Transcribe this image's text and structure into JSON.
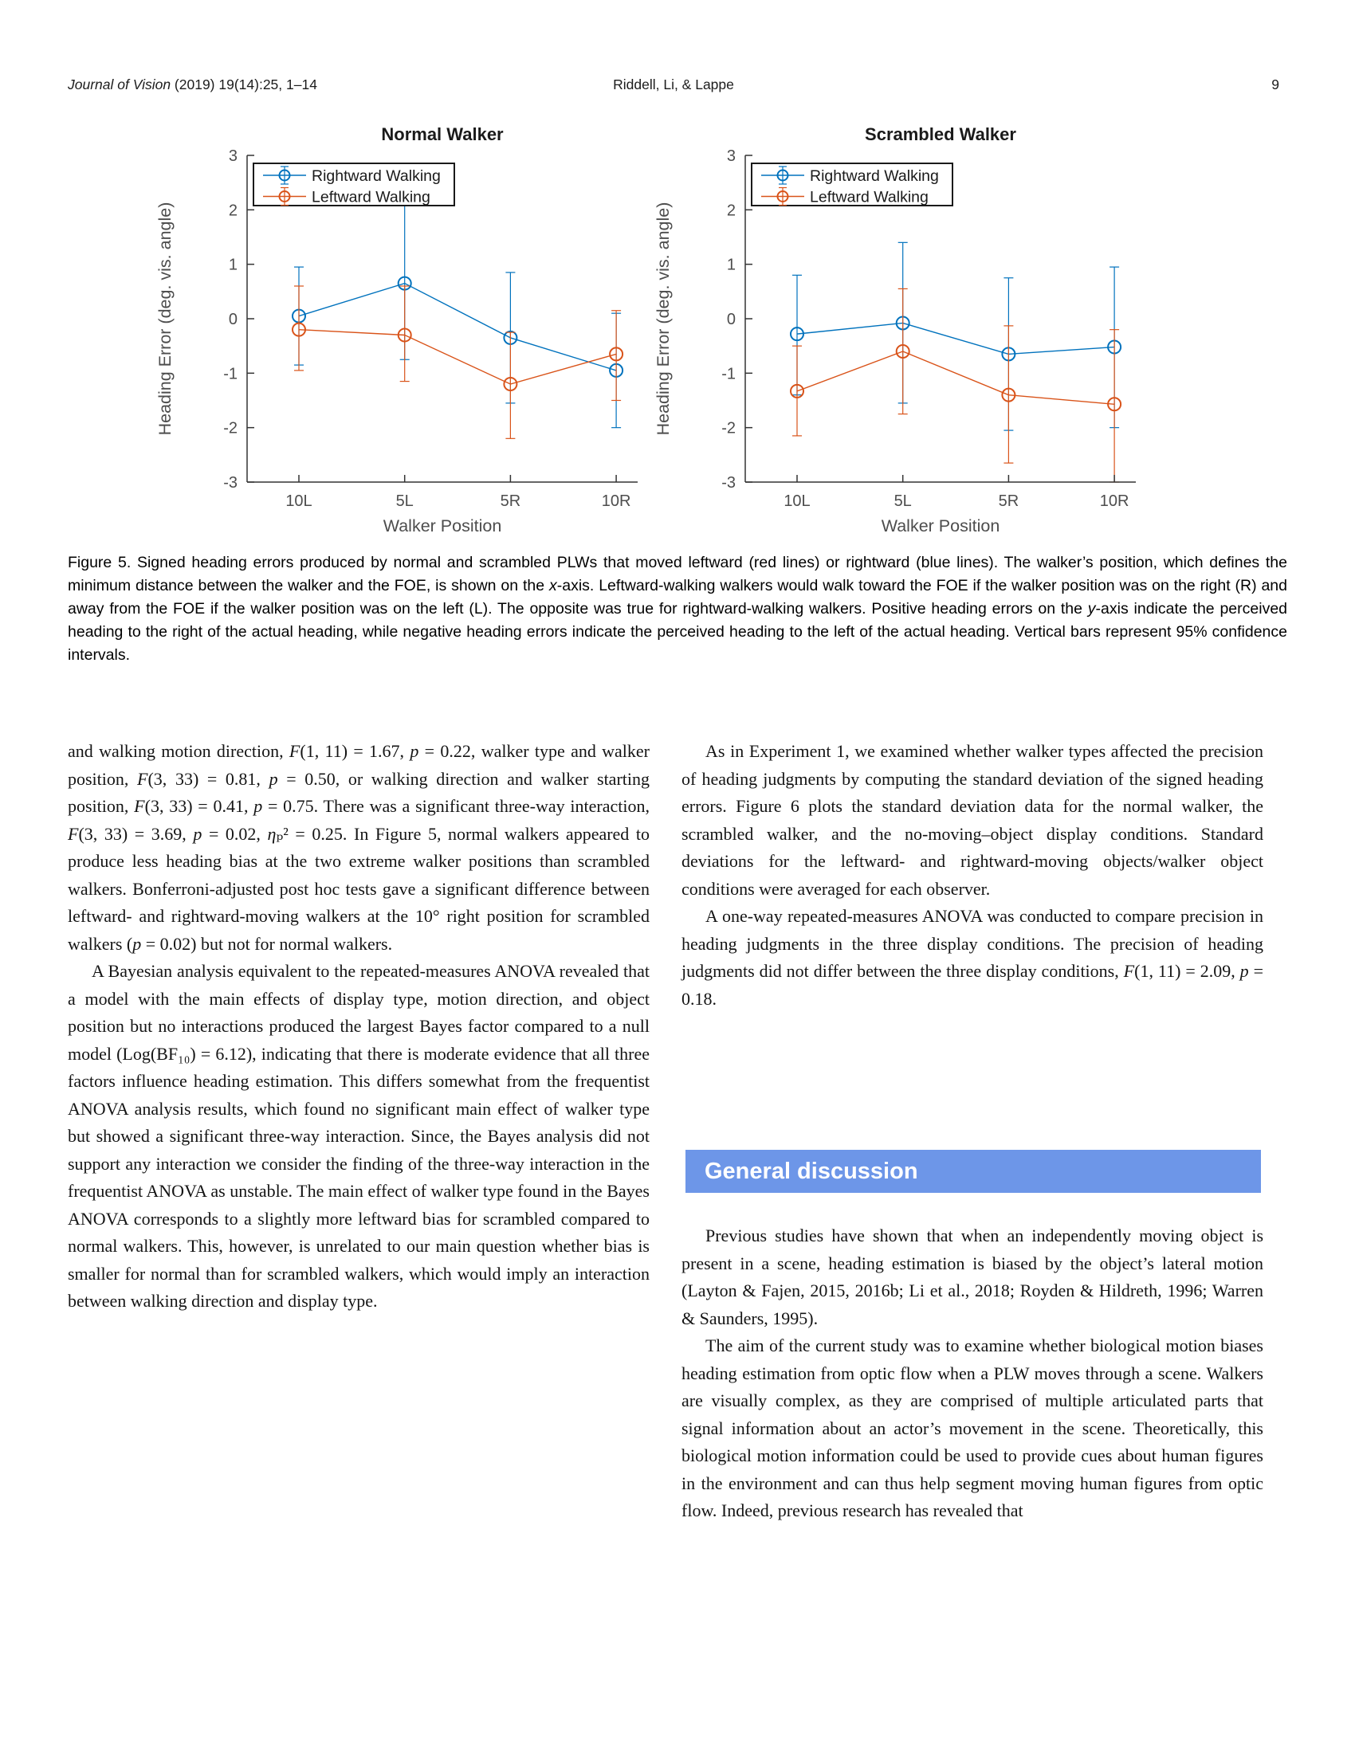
{
  "header": {
    "left_rich": "*Journal of Vision* (2019) 19(14):25, 1–14",
    "center": "Riddell, Li, & Lappe",
    "page_number": "9"
  },
  "colors": {
    "accent_bar": "#6D96E8",
    "series_blue": "#0072BD",
    "series_orange": "#D95319",
    "axis": "#333333",
    "tick_text": "#4d4d4d"
  },
  "chart_data": [
    {
      "type": "line",
      "title": "Normal Walker",
      "categories": [
        "10L",
        "5L",
        "5R",
        "10R"
      ],
      "xlabel": "Walker Position",
      "ylabel": "Heading Error (deg. vis. angle)",
      "ylim": [
        -3,
        3
      ],
      "yticks": [
        -3,
        -2,
        -1,
        0,
        1,
        2,
        3
      ],
      "grid": false,
      "legend_position": "top-left",
      "series": [
        {
          "name": "Rightward Walking",
          "color": "#0072BD",
          "values": [
            0.05,
            0.65,
            -0.35,
            -0.95
          ],
          "ci_low": [
            -0.85,
            -0.75,
            -1.55,
            -2.0
          ],
          "ci_high": [
            0.95,
            2.15,
            0.85,
            0.1
          ]
        },
        {
          "name": "Leftward Walking",
          "color": "#D95319",
          "values": [
            -0.2,
            -0.3,
            -1.2,
            -0.65
          ],
          "ci_low": [
            -0.95,
            -1.15,
            -2.2,
            -1.5
          ],
          "ci_high": [
            0.6,
            0.6,
            -0.25,
            0.15
          ]
        }
      ],
      "ci_note": "error bars are 95% confidence intervals"
    },
    {
      "type": "line",
      "title": "Scrambled Walker",
      "categories": [
        "10L",
        "5L",
        "5R",
        "10R"
      ],
      "xlabel": "Walker Position",
      "ylabel": "Heading Error (deg. vis. angle)",
      "ylim": [
        -3,
        3
      ],
      "yticks": [
        -3,
        -2,
        -1,
        0,
        1,
        2,
        3
      ],
      "grid": false,
      "legend_position": "top-left",
      "series": [
        {
          "name": "Rightward Walking",
          "color": "#0072BD",
          "values": [
            -0.28,
            -0.08,
            -0.65,
            -0.52
          ],
          "ci_low": [
            -1.4,
            -1.55,
            -2.05,
            -2.0
          ],
          "ci_high": [
            0.8,
            1.4,
            0.75,
            0.95
          ]
        },
        {
          "name": "Leftward Walking",
          "color": "#D95319",
          "values": [
            -1.33,
            -0.6,
            -1.4,
            -1.57
          ],
          "ci_low": [
            -2.15,
            -1.75,
            -2.65,
            -3.0
          ],
          "ci_high": [
            -0.5,
            0.55,
            -0.13,
            -0.2
          ]
        }
      ],
      "ci_note": "error bars are 95% confidence intervals"
    }
  ],
  "figure_caption_rich": "Figure 5. Signed heading errors produced by normal and scrambled PLWs that moved leftward (red lines) or rightward (blue lines). The walker’s position, which defines the minimum distance between the walker and the FOE, is shown on the *x*-axis. Leftward-walking walkers would walk toward the FOE if the walker position was on the right (R) and away from the FOE if the walker position was on the left (L). The opposite was true for rightward-walking walkers. Positive heading errors on the *y*-axis indicate the perceived heading to the right of the actual heading, while negative heading errors indicate the perceived heading to the left of the actual heading. Vertical bars represent 95% confidence intervals.",
  "body": {
    "left_column": [
      {
        "indent": false,
        "text": "and walking motion direction, *F*(1, 11) = 1.67, *p* = 0.22, walker type and walker position, *F*(3, 33) = 0.81, *p* = 0.50, or walking direction and walker starting position, *F*(3, 33) = 0.41, *p* = 0.75. There was a significant three-way interaction, *F*(3, 33) = 3.69, *p* = 0.02, *η*ₚ² = 0.25. In Figure 5, normal walkers appeared to produce less heading bias at the two extreme walker positions than scrambled walkers. Bonferroni-adjusted post hoc tests gave a significant difference between leftward- and rightward-moving walkers at the 10° right position for scrambled walkers (*p* = 0.02) but not for normal walkers."
      },
      {
        "indent": true,
        "text": "A Bayesian analysis equivalent to the repeated-measures ANOVA revealed that a model with the main effects of display type, motion direction, and object position but no interactions produced the largest Bayes factor compared to a null model (Log(BF₁₀) = 6.12), indicating that there is moderate evidence that all three factors influence heading estimation. This differs somewhat from the frequentist ANOVA analysis results, which found no significant main effect of walker type but showed a significant three-way interaction. Since, the Bayes analysis did not support any interaction we consider the finding of the three-way interaction in the frequentist ANOVA as unstable. The main effect of walker type found in the Bayes ANOVA corresponds to a slightly more leftward bias for scrambled compared to normal walkers. This, however, is unrelated to our main question whether bias is smaller for normal than for scrambled walkers, which would imply an interaction between walking direction and display type."
      }
    ],
    "right_column_top": [
      {
        "indent": true,
        "text": "As in Experiment 1, we examined whether walker types affected the precision of heading judgments by computing the standard deviation of the signed heading errors. Figure 6 plots the standard deviation data for the normal walker, the scrambled walker, and the no-moving–object display conditions. Standard deviations for the leftward- and rightward-moving objects/walker object conditions were averaged for each observer."
      },
      {
        "indent": true,
        "text": "A one-way repeated-measures ANOVA was conducted to compare precision in heading judgments in the three display conditions. The precision of heading judgments did not differ between the three display conditions, *F*(1, 11) = 2.09, *p* = 0.18."
      }
    ],
    "section_header": "General discussion",
    "right_column_bottom": [
      {
        "indent": true,
        "text": "Previous studies have shown that when an independently moving object is present in a scene, heading estimation is biased by the object’s lateral motion (Layton & Fajen, 2015, 2016b; Li et al., 2018; Royden & Hildreth, 1996; Warren & Saunders, 1995)."
      },
      {
        "indent": true,
        "text": "The aim of the current study was to examine whether biological motion biases heading estimation from optic flow when a PLW moves through a scene. Walkers are visually complex, as they are comprised of multiple articulated parts that signal information about an actor’s movement in the scene. Theoretically, this biological motion information could be used to provide cues about human figures in the environment and can thus help segment moving human figures from optic flow. Indeed, previous research has revealed that"
      }
    ]
  }
}
